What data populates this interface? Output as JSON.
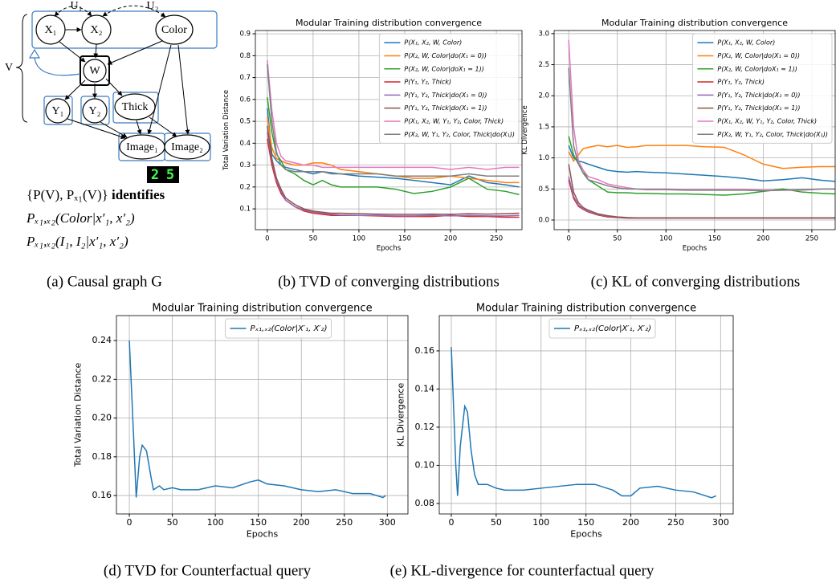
{
  "diagram": {
    "nodes": [
      "X₁",
      "X₂",
      "Color",
      "W",
      "Y₁",
      "Y₂",
      "Thick",
      "Image₁",
      "Image₂"
    ],
    "latents": [
      "U₁",
      "U₂"
    ],
    "group_label": "V",
    "digits": [
      "2",
      "5"
    ],
    "statement": {
      "formula": "{P(V), Pₓ₁(V)}",
      "verb": "identifies"
    },
    "queries": [
      "Pₓ₁,ₓ₂(Color|x′₁, x′₂)",
      "Pₓ₁,ₓ₂(I₁, I₂|x′₁, x′₂)"
    ],
    "caption": "(a) Causal graph G"
  },
  "chart_data": [
    {
      "type": "line",
      "title": "Modular Training distribution convergence",
      "xlabel": "Epochs",
      "ylabel": "Total Variation Distance",
      "caption": "(b) TVD of converging distributions",
      "x": [
        0,
        5,
        10,
        15,
        20,
        30,
        40,
        50,
        60,
        70,
        80,
        100,
        120,
        140,
        160,
        180,
        200,
        220,
        240,
        260,
        275
      ],
      "xlim": [
        -13,
        278
      ],
      "xticks": [
        0,
        50,
        100,
        150,
        200,
        250
      ],
      "ylim": [
        0.005,
        0.915
      ],
      "yticks": [
        0.1,
        0.2,
        0.3,
        0.4,
        0.5,
        0.6,
        0.7,
        0.8,
        0.9
      ],
      "grid": true,
      "legend": "upper right",
      "series": [
        {
          "name": "P(X₁, X₂, W, Color)",
          "color": "#1f77b4",
          "values": [
            0.56,
            0.35,
            0.32,
            0.3,
            0.29,
            0.28,
            0.27,
            0.26,
            0.27,
            0.265,
            0.26,
            0.25,
            0.245,
            0.24,
            0.23,
            0.22,
            0.21,
            0.25,
            0.22,
            0.21,
            0.2
          ]
        },
        {
          "name": "P(X₂, W, Color|do(X₁ = 0))",
          "color": "#ff7f0e",
          "values": [
            0.52,
            0.38,
            0.33,
            0.32,
            0.31,
            0.3,
            0.3,
            0.31,
            0.31,
            0.3,
            0.28,
            0.27,
            0.26,
            0.25,
            0.24,
            0.24,
            0.25,
            0.24,
            0.23,
            0.22,
            0.22
          ]
        },
        {
          "name": "P(X₂, W, Color|doX₁ = 1))",
          "color": "#2ca02c",
          "values": [
            0.61,
            0.45,
            0.35,
            0.32,
            0.28,
            0.26,
            0.23,
            0.21,
            0.23,
            0.21,
            0.2,
            0.2,
            0.2,
            0.19,
            0.17,
            0.18,
            0.2,
            0.24,
            0.19,
            0.18,
            0.165
          ]
        },
        {
          "name": "P(Y₁, Y₂, Thick)",
          "color": "#d62728",
          "values": [
            0.42,
            0.3,
            0.22,
            0.17,
            0.14,
            0.11,
            0.09,
            0.08,
            0.075,
            0.07,
            0.07,
            0.07,
            0.068,
            0.065,
            0.065,
            0.065,
            0.07,
            0.065,
            0.065,
            0.062,
            0.062
          ]
        },
        {
          "name": "P(Y₁, Y₂, Thick|do(X₁ = 0))",
          "color": "#9467bd",
          "values": [
            0.45,
            0.32,
            0.23,
            0.18,
            0.14,
            0.11,
            0.095,
            0.085,
            0.08,
            0.075,
            0.072,
            0.07,
            0.07,
            0.068,
            0.068,
            0.07,
            0.068,
            0.07,
            0.068,
            0.068,
            0.07
          ]
        },
        {
          "name": "P(Y₁, Y₂, Thick|do(X₁ = 1))",
          "color": "#8c564b",
          "values": [
            0.48,
            0.33,
            0.24,
            0.19,
            0.15,
            0.12,
            0.1,
            0.09,
            0.085,
            0.08,
            0.08,
            0.078,
            0.076,
            0.075,
            0.075,
            0.076,
            0.075,
            0.078,
            0.076,
            0.078,
            0.08
          ]
        },
        {
          "name": "P(X₁, X₂, W, Y₁, Y₂, Color, Thick)",
          "color": "#e377c2",
          "values": [
            0.78,
            0.55,
            0.4,
            0.34,
            0.32,
            0.31,
            0.3,
            0.3,
            0.29,
            0.29,
            0.29,
            0.29,
            0.29,
            0.29,
            0.29,
            0.29,
            0.28,
            0.29,
            0.28,
            0.29,
            0.29
          ]
        },
        {
          "name": "P(X₂, W, Y₁, Y₂, Color, Thick|do(X₁))",
          "color": "#7f7f7f",
          "values": [
            0.76,
            0.5,
            0.36,
            0.3,
            0.28,
            0.27,
            0.27,
            0.27,
            0.27,
            0.26,
            0.26,
            0.26,
            0.26,
            0.25,
            0.25,
            0.25,
            0.25,
            0.26,
            0.25,
            0.25,
            0.25
          ]
        }
      ]
    },
    {
      "type": "line",
      "title": "Modular Training distribution convergence",
      "xlabel": "Epochs",
      "ylabel": "KL Divergence",
      "caption": "(c) KL of converging distributions",
      "x": [
        0,
        5,
        10,
        15,
        20,
        30,
        40,
        50,
        60,
        70,
        80,
        100,
        120,
        140,
        160,
        180,
        200,
        220,
        240,
        260,
        275
      ],
      "xlim": [
        -15,
        274
      ],
      "xticks": [
        0,
        50,
        100,
        150,
        200,
        250
      ],
      "ylim": [
        -0.155,
        3.05
      ],
      "yticks": [
        {
          "value": 0,
          "label": "0.0"
        },
        0.5,
        {
          "value": 1,
          "label": "1.0"
        },
        1.5,
        {
          "value": 2,
          "label": "2.0"
        },
        2.5,
        {
          "value": 3,
          "label": "3.0"
        }
      ],
      "grid": true,
      "legend": "upper right",
      "series": [
        {
          "name": "P(X₁, X₂, W, Color)",
          "color": "#1f77b4",
          "values": [
            1.2,
            1.0,
            0.95,
            0.93,
            0.9,
            0.85,
            0.8,
            0.78,
            0.77,
            0.78,
            0.77,
            0.76,
            0.74,
            0.72,
            0.7,
            0.67,
            0.63,
            0.65,
            0.68,
            0.64,
            0.62
          ]
        },
        {
          "name": "P(X₂, W, Color|do(X₁ = 0))",
          "color": "#ff7f0e",
          "values": [
            1.1,
            0.95,
            1.05,
            1.15,
            1.17,
            1.2,
            1.18,
            1.2,
            1.17,
            1.18,
            1.2,
            1.2,
            1.2,
            1.18,
            1.17,
            1.05,
            0.9,
            0.83,
            0.85,
            0.86,
            0.86
          ]
        },
        {
          "name": "P(X₂, W, Color|doX₁ = 1))",
          "color": "#2ca02c",
          "values": [
            1.35,
            1.05,
            0.9,
            0.8,
            0.65,
            0.55,
            0.45,
            0.44,
            0.44,
            0.43,
            0.43,
            0.42,
            0.42,
            0.41,
            0.4,
            0.42,
            0.46,
            0.5,
            0.45,
            0.43,
            0.42
          ]
        },
        {
          "name": "P(Y₁, Y₂, Thick)",
          "color": "#d62728",
          "values": [
            0.65,
            0.35,
            0.22,
            0.17,
            0.13,
            0.08,
            0.05,
            0.04,
            0.03,
            0.03,
            0.03,
            0.03,
            0.03,
            0.03,
            0.03,
            0.03,
            0.03,
            0.03,
            0.03,
            0.03,
            0.03
          ]
        },
        {
          "name": "P(Y₁, Y₂, Thick|do(X₁ = 0))",
          "color": "#9467bd",
          "values": [
            0.7,
            0.38,
            0.24,
            0.18,
            0.14,
            0.09,
            0.06,
            0.045,
            0.035,
            0.03,
            0.03,
            0.03,
            0.03,
            0.03,
            0.03,
            0.03,
            0.03,
            0.03,
            0.03,
            0.03,
            0.03
          ]
        },
        {
          "name": "P(Y₁, Y₂, Thick|do(X₁ = 1))",
          "color": "#8c564b",
          "values": [
            0.9,
            0.45,
            0.28,
            0.2,
            0.16,
            0.1,
            0.07,
            0.05,
            0.04,
            0.035,
            0.035,
            0.035,
            0.035,
            0.035,
            0.035,
            0.035,
            0.035,
            0.035,
            0.035,
            0.035,
            0.035
          ]
        },
        {
          "name": "P(X₁, X₂, W, Y₁, Y₂, Color, Thick)",
          "color": "#e377c2",
          "values": [
            2.9,
            1.5,
            0.95,
            0.8,
            0.7,
            0.65,
            0.58,
            0.55,
            0.52,
            0.5,
            0.5,
            0.5,
            0.49,
            0.49,
            0.49,
            0.49,
            0.48,
            0.48,
            0.48,
            0.5,
            0.5
          ]
        },
        {
          "name": "P(X₂, W, Y₁, Y₂, Color, Thick|do(X₁))",
          "color": "#7f7f7f",
          "values": [
            2.45,
            1.2,
            0.9,
            0.75,
            0.65,
            0.6,
            0.55,
            0.52,
            0.5,
            0.5,
            0.49,
            0.49,
            0.48,
            0.48,
            0.48,
            0.48,
            0.47,
            0.48,
            0.49,
            0.5,
            0.5
          ]
        }
      ]
    },
    {
      "type": "line",
      "title": "Modular Training distribution convergence",
      "xlabel": "Epochs",
      "ylabel": "Total Variation Distance",
      "caption": "(d) TVD for Counterfactual query",
      "x": [
        0,
        5,
        8,
        12,
        15,
        20,
        25,
        28,
        35,
        40,
        50,
        60,
        80,
        100,
        120,
        140,
        150,
        160,
        180,
        200,
        220,
        240,
        260,
        280,
        295,
        298
      ],
      "xlim": [
        -15,
        324
      ],
      "xticks": [
        0,
        50,
        100,
        150,
        200,
        250,
        300
      ],
      "ylim": [
        0.1505,
        0.2529
      ],
      "yticks": [
        0.16,
        0.18,
        {
          "value": 0.2,
          "label": "0.20"
        },
        0.22,
        0.24
      ],
      "grid": true,
      "legend": "upper center",
      "series": [
        {
          "name": "Pₓ₁,ₓ₂(Color|X′₁, X′₂)",
          "color": "#1f77b4",
          "values": [
            0.24,
            0.19,
            0.159,
            0.18,
            0.186,
            0.183,
            0.17,
            0.163,
            0.165,
            0.163,
            0.164,
            0.163,
            0.163,
            0.165,
            0.164,
            0.167,
            0.168,
            0.166,
            0.165,
            0.163,
            0.162,
            0.163,
            0.161,
            0.161,
            0.159,
            0.16
          ]
        }
      ]
    },
    {
      "type": "line",
      "title": "Modular Training distribution convergence",
      "xlabel": "Epochs",
      "ylabel": "KL Divergence",
      "caption": "(e) KL-divergence for counterfactual query",
      "x": [
        0,
        5,
        7,
        10,
        15,
        18,
        22,
        26,
        30,
        40,
        50,
        60,
        80,
        100,
        120,
        140,
        160,
        180,
        190,
        200,
        210,
        230,
        250,
        270,
        290,
        295
      ],
      "xlim": [
        -13.4,
        314
      ],
      "xticks": [
        0,
        50,
        100,
        150,
        200,
        250,
        300
      ],
      "ylim": [
        0.0745,
        0.1785
      ],
      "yticks": [
        0.08,
        {
          "value": 0.1,
          "label": "0.10"
        },
        0.12,
        0.14,
        0.16
      ],
      "grid": true,
      "legend": "upper center",
      "series": [
        {
          "name": "Pₓ₁,ₓ₂(Color|X′₁, X′₂)",
          "color": "#1f77b4",
          "values": [
            0.162,
            0.1,
            0.084,
            0.11,
            0.131,
            0.128,
            0.108,
            0.095,
            0.09,
            0.09,
            0.088,
            0.087,
            0.087,
            0.088,
            0.089,
            0.09,
            0.09,
            0.087,
            0.084,
            0.084,
            0.088,
            0.089,
            0.087,
            0.086,
            0.083,
            0.084
          ]
        }
      ]
    }
  ]
}
